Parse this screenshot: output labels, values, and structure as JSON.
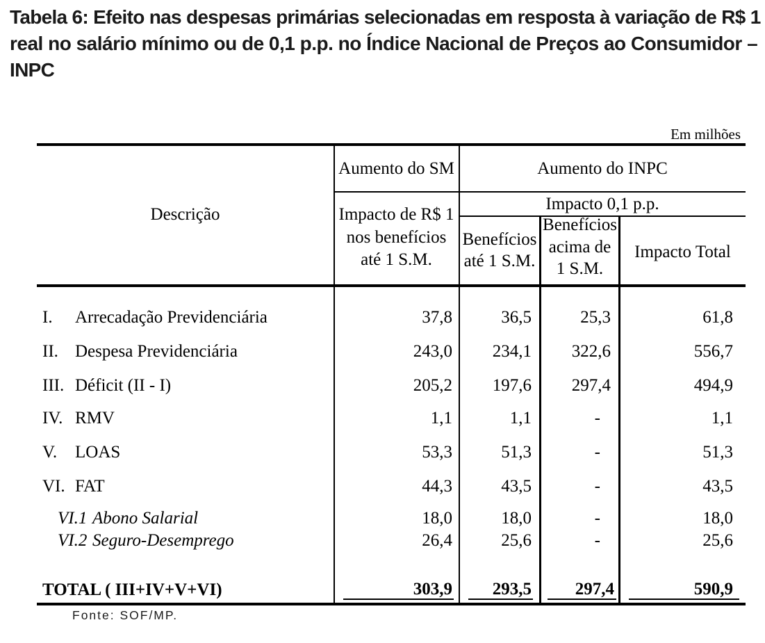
{
  "title": {
    "lines": [
      "Tabela 6: Efeito nas despesas primárias selecionadas em resposta à variação de R$ 1",
      "real no salário mínimo ou de 0,1 p.p. no Índice Nacional de Preços ao Consumidor –",
      "INPC"
    ]
  },
  "units_note": "Em milhões",
  "table": {
    "header": {
      "descricao": "Descrição",
      "aumento_sm": "Aumento do SM",
      "aumento_inpc": "Aumento do INPC",
      "impacto_rs1_lines": [
        "Impacto de R$ 1",
        "nos benefícios",
        "até 1 S.M."
      ],
      "impacto_01pp": "Impacto 0,1 p.p.",
      "beneficios_ate_lines": [
        "Benefícios",
        "até 1 S.M."
      ],
      "beneficios_acima_lines": [
        "Benefícios",
        "acima de",
        "1 S.M."
      ],
      "impacto_total": "Impacto Total"
    },
    "rows": [
      {
        "numeral": "I.",
        "label": "Arrecadação Previdenciária",
        "values": [
          "37,8",
          "36,5",
          "25,3",
          "61,8"
        ],
        "sub": false
      },
      {
        "numeral": "II.",
        "label": "Despesa Previdenciária",
        "values": [
          "243,0",
          "234,1",
          "322,6",
          "556,7"
        ],
        "sub": false
      },
      {
        "numeral": "III.",
        "label": "Déficit (II - I)",
        "values": [
          "205,2",
          "197,6",
          "297,4",
          "494,9"
        ],
        "sub": false
      },
      {
        "numeral": "IV.",
        "label": "RMV",
        "values": [
          "1,1",
          "1,1",
          "-",
          "1,1"
        ],
        "sub": false
      },
      {
        "numeral": "V.",
        "label": "LOAS",
        "values": [
          "53,3",
          "51,3",
          "-",
          "51,3"
        ],
        "sub": false
      },
      {
        "numeral": "VI.",
        "label": "FAT",
        "values": [
          "44,3",
          "43,5",
          "-",
          "43,5"
        ],
        "sub": false
      },
      {
        "numeral": "VI.1",
        "label": "Abono Salarial",
        "values": [
          "18,0",
          "18,0",
          "-",
          "18,0"
        ],
        "sub": true
      },
      {
        "numeral": "VI.2",
        "label": "Seguro-Desemprego",
        "values": [
          "26,4",
          "25,6",
          "-",
          "25,6"
        ],
        "sub": true
      }
    ],
    "total": {
      "label": "TOTAL ( III+IV+V+VI)",
      "values": [
        "303,9",
        "293,5",
        "297,4",
        "590,9"
      ]
    }
  },
  "source_note": "Fonte: SOF/MP."
}
